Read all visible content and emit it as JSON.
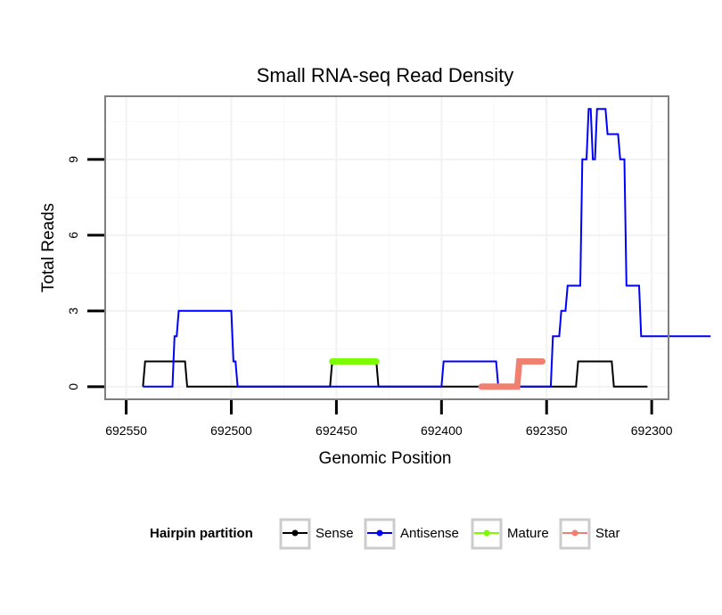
{
  "chart_data": {
    "type": "line",
    "title": "Small RNA-seq Read Density",
    "xlabel": "Genomic Position",
    "ylabel": "Total Reads",
    "x_reversed": true,
    "xlim": [
      692560,
      692292
    ],
    "ylim": [
      -0.5,
      11.5
    ],
    "xticks": [
      692550,
      692500,
      692450,
      692400,
      692350,
      692300
    ],
    "xtick_labels": [
      "692550",
      "692500",
      "692450",
      "692400",
      "692350",
      "692300"
    ],
    "yticks": [
      0,
      3,
      6,
      9
    ],
    "ytick_labels": [
      "0",
      "3",
      "6",
      "9"
    ],
    "grid": true,
    "legend": {
      "title": "Hairpin partition",
      "placement": "bottom",
      "entries": [
        "Sense",
        "Antisense",
        "Mature",
        "Star"
      ]
    },
    "series": [
      {
        "name": "Sense",
        "color": "#000000",
        "x": [
          692542,
          692541,
          692522,
          692521,
          692453,
          692452,
          692431,
          692430,
          692336,
          692335,
          692319,
          692318,
          692302
        ],
        "y": [
          0,
          1,
          1,
          0,
          0,
          1,
          1,
          0,
          0,
          1,
          1,
          0,
          0
        ]
      },
      {
        "name": "Antisense",
        "color": "#0000FF",
        "x": [
          692542,
          692528,
          692527,
          692526,
          692525,
          692524,
          692500,
          692499,
          692498,
          692497,
          692400,
          692399,
          692374,
          692373,
          692348,
          692347,
          692344,
          692343,
          692341,
          692340,
          692334,
          692333,
          692331,
          692330,
          692329,
          692328,
          692327,
          692326,
          692322,
          692321,
          692316,
          692315,
          692313,
          692312,
          692306,
          692305,
          692301,
          692300,
          692295,
          692294,
          692291,
          692290,
          692282,
          692281,
          692272
        ],
        "y": [
          0,
          0,
          2,
          2,
          3,
          3,
          3,
          1,
          1,
          0,
          0,
          1,
          1,
          0,
          0,
          2,
          2,
          3,
          3,
          4,
          4,
          9,
          9,
          11,
          11,
          9,
          9,
          11,
          11,
          10,
          10,
          9,
          9,
          4,
          4,
          2,
          2,
          2,
          2,
          2,
          2,
          2,
          2,
          2,
          2
        ]
      },
      {
        "name": "Mature",
        "color": "#7CFC00",
        "x": [
          692452,
          692431
        ],
        "y": [
          1,
          1
        ]
      },
      {
        "name": "Star",
        "color": "#F08070",
        "x": [
          692381,
          692364,
          692363,
          692359,
          692352
        ],
        "y": [
          0,
          0,
          1,
          1,
          1
        ]
      }
    ]
  }
}
